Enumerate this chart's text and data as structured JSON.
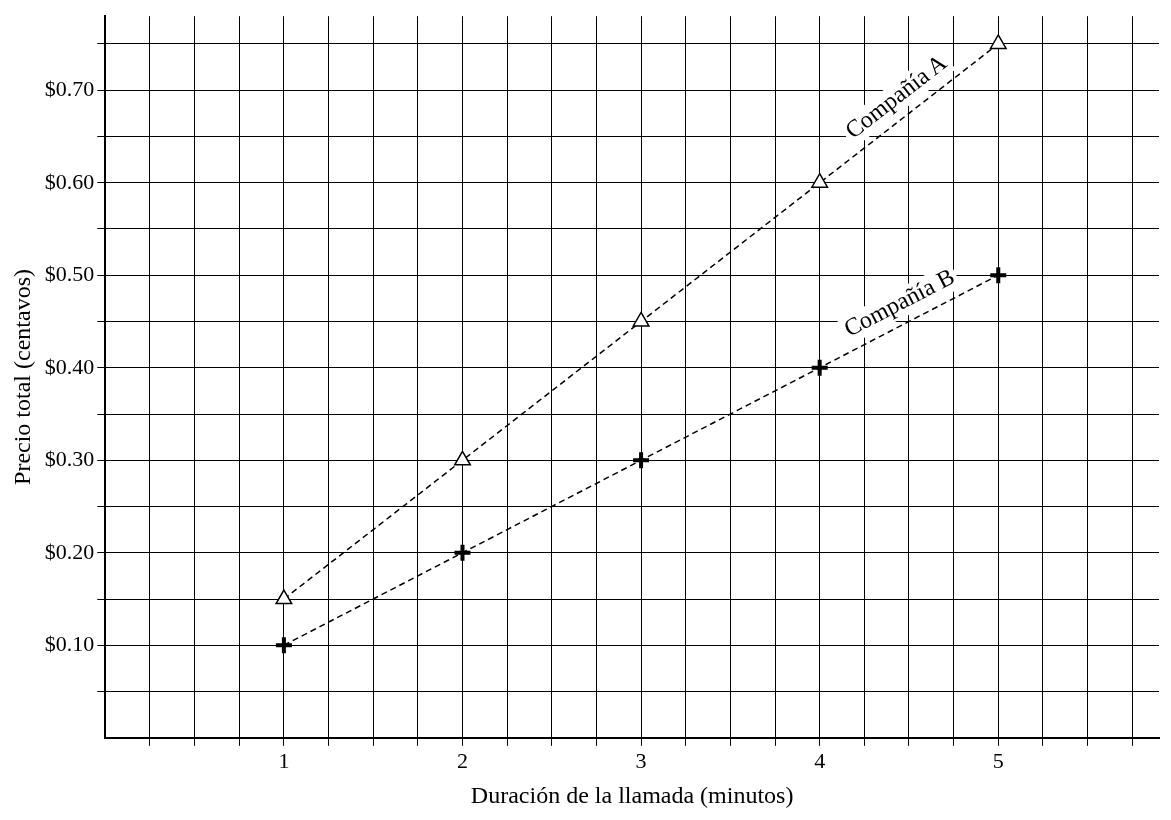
{
  "chart_data": {
    "type": "line",
    "xlabel": "Duración de la llamada (minutos)",
    "ylabel": "Precio total (centavos)",
    "x": [
      1,
      2,
      3,
      4,
      5
    ],
    "series": [
      {
        "name": "Compañía A",
        "color": "#000000",
        "marker": "triangle",
        "values": [
          0.15,
          0.3,
          0.45,
          0.6,
          0.75
        ]
      },
      {
        "name": "Compañía B",
        "color": "#000000",
        "marker": "cross",
        "values": [
          0.1,
          0.2,
          0.3,
          0.4,
          0.5
        ]
      }
    ],
    "xlim": [
      0,
      5.9
    ],
    "xticks": [
      {
        "value": 0.25,
        "label": null
      },
      {
        "value": 0.5,
        "label": null
      },
      {
        "value": 0.75,
        "label": null
      },
      1,
      {
        "value": 1.25,
        "label": null
      },
      {
        "value": 1.5,
        "label": null
      },
      {
        "value": 1.75,
        "label": null
      },
      2,
      {
        "value": 2.25,
        "label": null
      },
      {
        "value": 2.5,
        "label": null
      },
      {
        "value": 2.75,
        "label": null
      },
      3,
      {
        "value": 3.25,
        "label": null
      },
      {
        "value": 3.5,
        "label": null
      },
      {
        "value": 3.75,
        "label": null
      },
      4,
      {
        "value": 4.25,
        "label": null
      },
      {
        "value": 4.5,
        "label": null
      },
      {
        "value": 4.75,
        "label": null
      },
      5,
      {
        "value": 5.25,
        "label": null
      },
      {
        "value": 5.5,
        "label": null
      },
      {
        "value": 5.75,
        "label": null
      }
    ],
    "ylim": [
      0,
      0.78
    ],
    "yticks": [
      {
        "value": 0.05,
        "label": null
      },
      {
        "value": 0.1,
        "label": "$0.10"
      },
      {
        "value": 0.15,
        "label": null
      },
      {
        "value": 0.2,
        "label": "$0.20"
      },
      {
        "value": 0.25,
        "label": null
      },
      {
        "value": 0.3,
        "label": "$0.30"
      },
      {
        "value": 0.35,
        "label": null
      },
      {
        "value": 0.4,
        "label": "$0.40"
      },
      {
        "value": 0.45,
        "label": null
      },
      {
        "value": 0.5,
        "label": "$0.50"
      },
      {
        "value": 0.55,
        "label": null
      },
      {
        "value": 0.6,
        "label": "$0.60"
      },
      {
        "value": 0.65,
        "label": null
      },
      {
        "value": 0.7,
        "label": "$0.70"
      },
      {
        "value": 0.75,
        "label": null
      }
    ],
    "grid": true,
    "legend": false,
    "line_style": "dashed"
  }
}
